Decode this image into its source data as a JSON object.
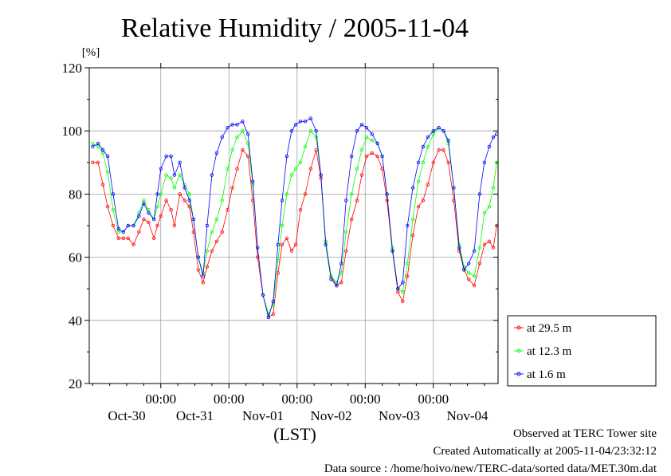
{
  "chart_data": {
    "type": "line",
    "title": "Relative Humidity / 2005-11-04",
    "ylabel": "[%]",
    "xlabel": "(LST)",
    "ylim": [
      20,
      120
    ],
    "yticks": [
      20,
      40,
      60,
      80,
      100,
      120
    ],
    "x_unit": "day",
    "xlim": [
      -0.05,
      5.95
    ],
    "x_ticks": [
      {
        "x": 1,
        "time": "00:00",
        "date": "Oct-31"
      },
      {
        "x": 2,
        "time": "00:00",
        "date": "Nov-01"
      },
      {
        "x": 3,
        "time": "00:00",
        "date": "Nov-02"
      },
      {
        "x": 4,
        "time": "00:00",
        "date": "Nov-03"
      },
      {
        "x": 5,
        "time": "00:00",
        "date": "Nov-04"
      }
    ],
    "date_labels": [
      {
        "x": 0.5,
        "label": "Oct-30"
      },
      {
        "x": 1.5,
        "label": "Oct-31"
      },
      {
        "x": 2.5,
        "label": "Nov-01"
      },
      {
        "x": 3.5,
        "label": "Nov-02"
      },
      {
        "x": 4.5,
        "label": "Nov-03"
      },
      {
        "x": 5.5,
        "label": "Nov-04"
      }
    ],
    "grid": true,
    "legend_position": "bottom-right outside",
    "series": [
      {
        "name": "at 29.5 m",
        "color": "#ff0000",
        "points": [
          [
            0,
            90
          ],
          [
            0.08,
            90
          ],
          [
            0.15,
            83
          ],
          [
            0.22,
            76
          ],
          [
            0.3,
            70
          ],
          [
            0.38,
            66
          ],
          [
            0.45,
            66
          ],
          [
            0.52,
            66
          ],
          [
            0.6,
            64
          ],
          [
            0.68,
            68
          ],
          [
            0.75,
            72
          ],
          [
            0.82,
            71
          ],
          [
            0.9,
            66
          ],
          [
            0.95,
            70
          ],
          [
            1.0,
            73
          ],
          [
            1.08,
            78
          ],
          [
            1.15,
            75
          ],
          [
            1.2,
            70
          ],
          [
            1.28,
            80
          ],
          [
            1.35,
            78
          ],
          [
            1.42,
            76
          ],
          [
            1.48,
            68
          ],
          [
            1.55,
            56
          ],
          [
            1.62,
            52
          ],
          [
            1.68,
            57
          ],
          [
            1.75,
            62
          ],
          [
            1.82,
            65
          ],
          [
            1.9,
            68
          ],
          [
            1.98,
            75
          ],
          [
            2.05,
            82
          ],
          [
            2.12,
            88
          ],
          [
            2.2,
            94
          ],
          [
            2.28,
            92
          ],
          [
            2.35,
            78
          ],
          [
            2.42,
            60
          ],
          [
            2.5,
            48
          ],
          [
            2.58,
            41
          ],
          [
            2.65,
            42
          ],
          [
            2.72,
            55
          ],
          [
            2.78,
            64
          ],
          [
            2.85,
            66
          ],
          [
            2.92,
            62
          ],
          [
            2.98,
            64
          ],
          [
            3.05,
            75
          ],
          [
            3.12,
            80
          ],
          [
            3.2,
            88
          ],
          [
            3.28,
            94
          ],
          [
            3.35,
            85
          ],
          [
            3.42,
            65
          ],
          [
            3.5,
            54
          ],
          [
            3.58,
            51
          ],
          [
            3.65,
            52
          ],
          [
            3.72,
            62
          ],
          [
            3.8,
            72
          ],
          [
            3.88,
            78
          ],
          [
            3.95,
            86
          ],
          [
            4.02,
            92
          ],
          [
            4.1,
            93
          ],
          [
            4.18,
            92
          ],
          [
            4.25,
            88
          ],
          [
            4.32,
            78
          ],
          [
            4.4,
            62
          ],
          [
            4.48,
            49
          ],
          [
            4.55,
            46
          ],
          [
            4.62,
            54
          ],
          [
            4.7,
            67
          ],
          [
            4.78,
            76
          ],
          [
            4.85,
            78
          ],
          [
            4.92,
            83
          ],
          [
            5.0,
            90
          ],
          [
            5.08,
            94
          ],
          [
            5.15,
            94
          ],
          [
            5.22,
            90
          ],
          [
            5.3,
            78
          ],
          [
            5.38,
            62
          ],
          [
            5.45,
            56
          ],
          [
            5.52,
            53
          ],
          [
            5.6,
            51
          ],
          [
            5.68,
            58
          ],
          [
            5.75,
            64
          ],
          [
            5.82,
            65
          ],
          [
            5.88,
            63
          ],
          [
            5.93,
            70
          ]
        ]
      },
      {
        "name": "at 12.3 m",
        "color": "#00ff00",
        "points": [
          [
            0,
            96
          ],
          [
            0.08,
            95
          ],
          [
            0.15,
            93
          ],
          [
            0.22,
            87
          ],
          [
            0.3,
            75
          ],
          [
            0.38,
            68
          ],
          [
            0.45,
            68
          ],
          [
            0.52,
            70
          ],
          [
            0.6,
            70
          ],
          [
            0.68,
            74
          ],
          [
            0.75,
            78
          ],
          [
            0.82,
            75
          ],
          [
            0.9,
            72
          ],
          [
            0.95,
            76
          ],
          [
            1.0,
            80
          ],
          [
            1.08,
            86
          ],
          [
            1.15,
            85
          ],
          [
            1.2,
            82
          ],
          [
            1.28,
            86
          ],
          [
            1.35,
            83
          ],
          [
            1.42,
            80
          ],
          [
            1.48,
            72
          ],
          [
            1.55,
            60
          ],
          [
            1.62,
            55
          ],
          [
            1.68,
            62
          ],
          [
            1.75,
            68
          ],
          [
            1.82,
            72
          ],
          [
            1.9,
            78
          ],
          [
            1.98,
            88
          ],
          [
            2.05,
            94
          ],
          [
            2.12,
            98
          ],
          [
            2.2,
            100
          ],
          [
            2.28,
            96
          ],
          [
            2.35,
            83
          ],
          [
            2.42,
            63
          ],
          [
            2.5,
            48
          ],
          [
            2.58,
            42
          ],
          [
            2.65,
            45
          ],
          [
            2.72,
            59
          ],
          [
            2.78,
            70
          ],
          [
            2.85,
            80
          ],
          [
            2.92,
            86
          ],
          [
            2.98,
            88
          ],
          [
            3.05,
            90
          ],
          [
            3.12,
            95
          ],
          [
            3.2,
            100
          ],
          [
            3.28,
            98
          ],
          [
            3.35,
            86
          ],
          [
            3.42,
            65
          ],
          [
            3.5,
            54
          ],
          [
            3.58,
            52
          ],
          [
            3.65,
            55
          ],
          [
            3.72,
            68
          ],
          [
            3.8,
            80
          ],
          [
            3.88,
            88
          ],
          [
            3.95,
            94
          ],
          [
            4.02,
            98
          ],
          [
            4.1,
            97
          ],
          [
            4.18,
            96
          ],
          [
            4.25,
            92
          ],
          [
            4.32,
            80
          ],
          [
            4.4,
            63
          ],
          [
            4.48,
            50
          ],
          [
            4.55,
            49
          ],
          [
            4.62,
            58
          ],
          [
            4.7,
            72
          ],
          [
            4.78,
            84
          ],
          [
            4.85,
            90
          ],
          [
            4.92,
            95
          ],
          [
            5.0,
            99
          ],
          [
            5.08,
            101
          ],
          [
            5.15,
            100
          ],
          [
            5.22,
            96
          ],
          [
            5.3,
            82
          ],
          [
            5.38,
            64
          ],
          [
            5.45,
            57
          ],
          [
            5.52,
            55
          ],
          [
            5.6,
            54
          ],
          [
            5.68,
            63
          ],
          [
            5.75,
            74
          ],
          [
            5.82,
            76
          ],
          [
            5.88,
            82
          ],
          [
            5.93,
            90
          ]
        ]
      },
      {
        "name": "at 1.6 m",
        "color": "#0000ff",
        "points": [
          [
            0,
            95
          ],
          [
            0.08,
            96
          ],
          [
            0.15,
            94
          ],
          [
            0.22,
            92
          ],
          [
            0.3,
            80
          ],
          [
            0.38,
            69
          ],
          [
            0.45,
            68
          ],
          [
            0.52,
            70
          ],
          [
            0.6,
            70
          ],
          [
            0.68,
            73
          ],
          [
            0.75,
            77
          ],
          [
            0.82,
            74
          ],
          [
            0.9,
            72
          ],
          [
            0.95,
            80
          ],
          [
            1.0,
            88
          ],
          [
            1.08,
            92
          ],
          [
            1.15,
            92
          ],
          [
            1.2,
            86
          ],
          [
            1.28,
            90
          ],
          [
            1.35,
            82
          ],
          [
            1.42,
            78
          ],
          [
            1.48,
            72
          ],
          [
            1.55,
            60
          ],
          [
            1.62,
            54
          ],
          [
            1.68,
            70
          ],
          [
            1.75,
            86
          ],
          [
            1.82,
            93
          ],
          [
            1.9,
            98
          ],
          [
            1.98,
            101
          ],
          [
            2.05,
            102
          ],
          [
            2.12,
            102
          ],
          [
            2.2,
            103
          ],
          [
            2.28,
            99
          ],
          [
            2.35,
            84
          ],
          [
            2.42,
            63
          ],
          [
            2.5,
            48
          ],
          [
            2.58,
            41
          ],
          [
            2.65,
            46
          ],
          [
            2.72,
            64
          ],
          [
            2.78,
            78
          ],
          [
            2.85,
            92
          ],
          [
            2.92,
            100
          ],
          [
            2.98,
            102
          ],
          [
            3.05,
            103
          ],
          [
            3.12,
            103
          ],
          [
            3.2,
            104
          ],
          [
            3.28,
            100
          ],
          [
            3.35,
            86
          ],
          [
            3.42,
            64
          ],
          [
            3.5,
            53
          ],
          [
            3.58,
            51
          ],
          [
            3.65,
            58
          ],
          [
            3.72,
            78
          ],
          [
            3.8,
            92
          ],
          [
            3.88,
            100
          ],
          [
            3.95,
            102
          ],
          [
            4.02,
            101
          ],
          [
            4.1,
            99
          ],
          [
            4.18,
            96
          ],
          [
            4.25,
            92
          ],
          [
            4.32,
            80
          ],
          [
            4.4,
            62
          ],
          [
            4.48,
            50
          ],
          [
            4.55,
            52
          ],
          [
            4.62,
            70
          ],
          [
            4.7,
            82
          ],
          [
            4.78,
            90
          ],
          [
            4.85,
            95
          ],
          [
            4.92,
            98
          ],
          [
            5.0,
            100
          ],
          [
            5.08,
            101
          ],
          [
            5.15,
            100
          ],
          [
            5.22,
            97
          ],
          [
            5.3,
            82
          ],
          [
            5.38,
            63
          ],
          [
            5.45,
            56
          ],
          [
            5.52,
            58
          ],
          [
            5.6,
            62
          ],
          [
            5.68,
            80
          ],
          [
            5.75,
            90
          ],
          [
            5.82,
            95
          ],
          [
            5.88,
            98
          ],
          [
            5.93,
            99
          ]
        ]
      }
    ]
  },
  "footer": {
    "observed": "Observed at TERC Tower site",
    "created": "Created Automatically at 2005-11-04/23:32:12",
    "source": "Data source : /home/hoivo/new/TERC-data/sorted  data/MET.30m.dat"
  }
}
